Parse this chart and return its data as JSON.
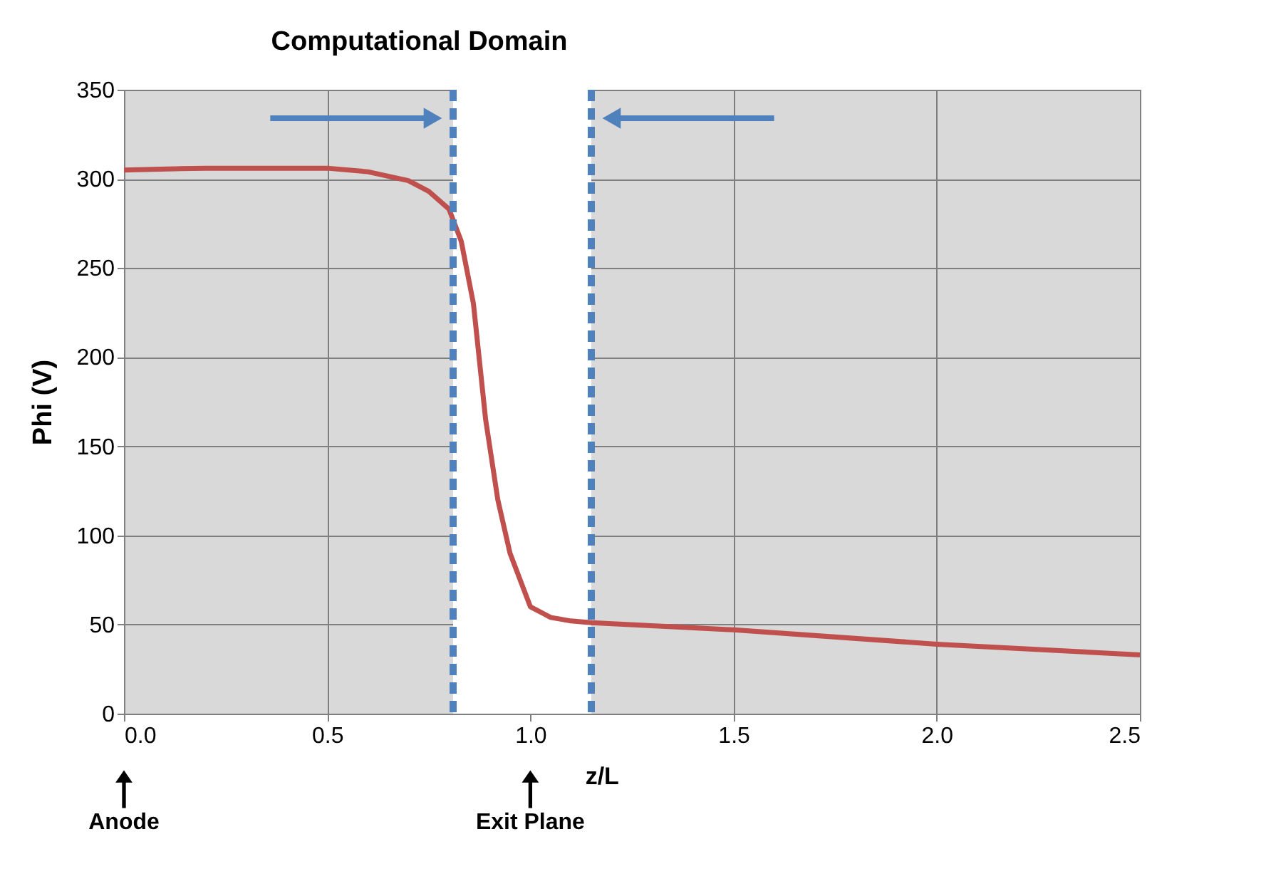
{
  "chart_data": {
    "type": "line",
    "title": "Computational Domain",
    "xlabel": "z/L",
    "ylabel": "Phi (V)",
    "x": [
      0,
      0.2,
      0.5,
      0.6,
      0.7,
      0.75,
      0.8,
      0.83,
      0.86,
      0.89,
      0.92,
      0.95,
      0.97,
      1.0,
      1.05,
      1.1,
      1.15,
      1.5,
      2.0,
      2.5
    ],
    "series": [
      {
        "color": "#c0504d",
        "values": [
          305,
          306,
          306,
          304,
          299,
          293,
          283,
          265,
          230,
          165,
          120,
          90,
          78,
          60,
          54,
          52,
          51,
          47,
          39,
          33
        ]
      }
    ],
    "xlim": [
      0,
      2.5
    ],
    "ylim": [
      0,
      350
    ],
    "xticks": [
      {
        "value": 0,
        "label": "0.0"
      },
      {
        "value": 0.5,
        "label": "0.5"
      },
      {
        "value": 1,
        "label": "1.0"
      },
      {
        "value": 1.5,
        "label": "1.5"
      },
      {
        "value": 2,
        "label": "2.0"
      },
      {
        "value": 2.5,
        "label": "2.5"
      }
    ],
    "yticks": [
      0,
      50,
      100,
      150,
      200,
      250,
      300,
      350
    ],
    "bands": [
      {
        "axis": "x",
        "from": 0.81,
        "to": 1.15,
        "color": "#ffffff"
      }
    ],
    "ref_lines": [
      {
        "axis": "x",
        "value": 0.81,
        "color": "#4f81bd",
        "line_style": "dashed"
      },
      {
        "axis": "x",
        "value": 1.15,
        "color": "#4f81bd",
        "line_style": "dashed"
      }
    ],
    "annotations": [
      "Anode",
      "Exit Plane"
    ],
    "grid": true,
    "marker": "none",
    "line_style": "solid"
  }
}
